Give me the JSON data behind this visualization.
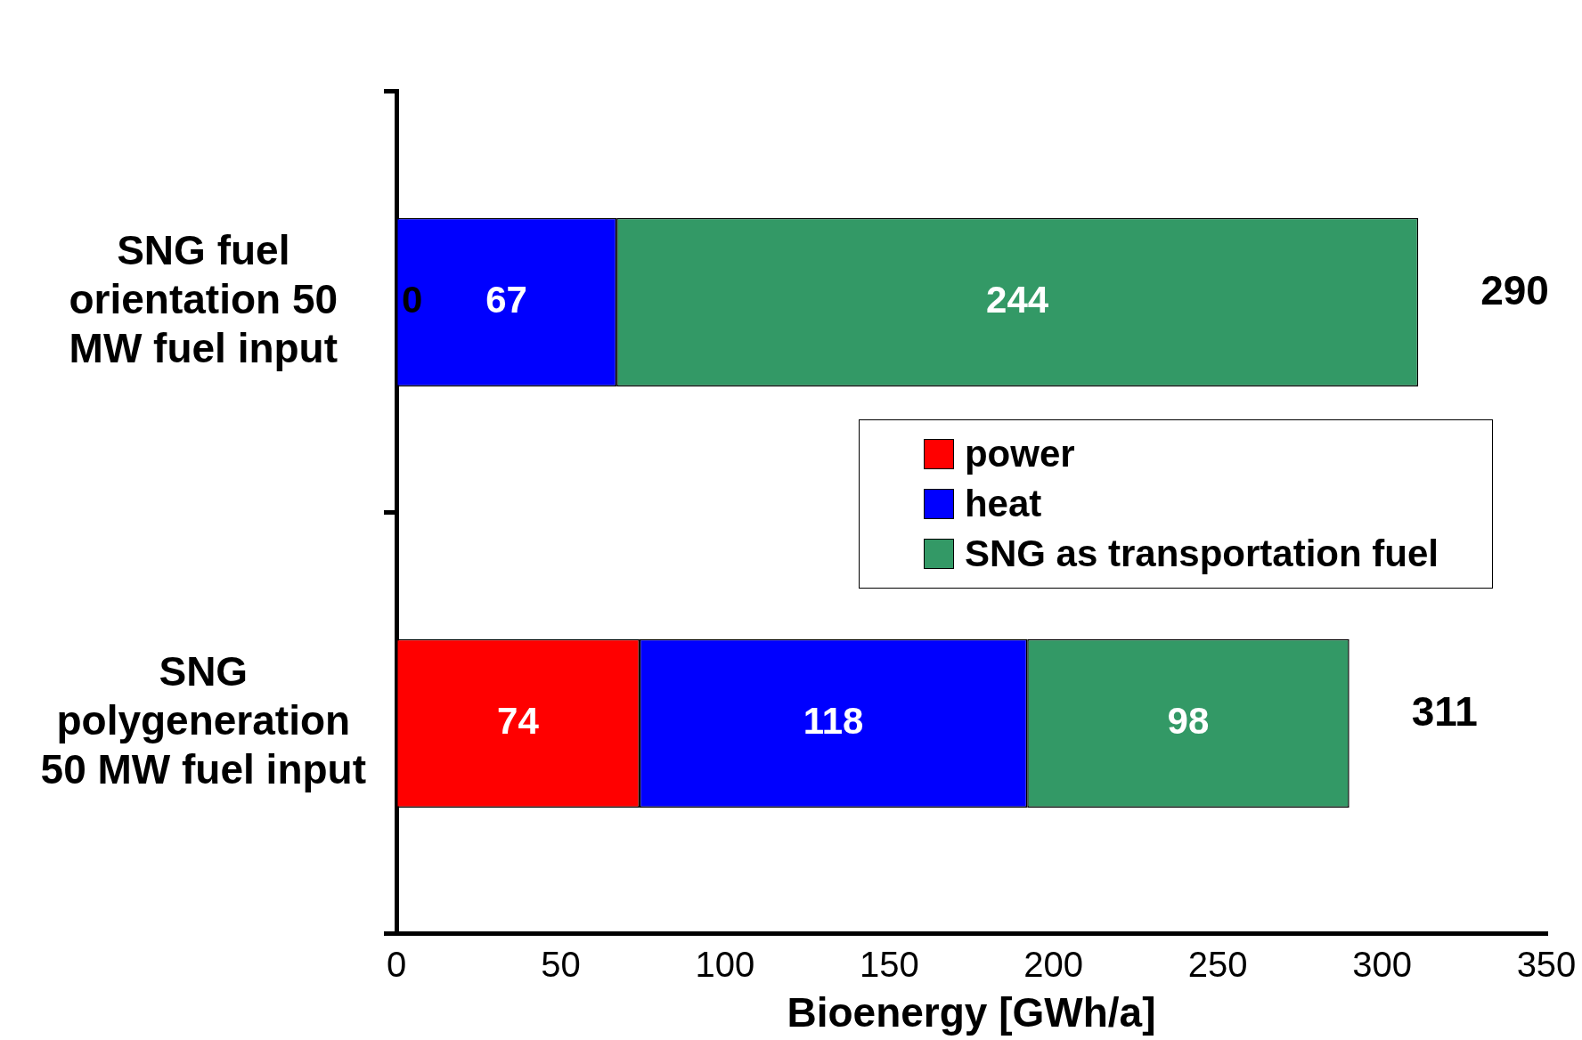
{
  "chart_data": {
    "type": "bar",
    "orientation": "horizontal",
    "stacked": true,
    "categories": [
      "SNG fuel orientation 50 MW fuel input",
      "SNG polygeneration 50 MW fuel input"
    ],
    "series": [
      {
        "name": "power",
        "color": "#ff0000",
        "values": [
          0,
          74
        ],
        "value_labels": [
          null,
          "74"
        ]
      },
      {
        "name": "heat",
        "color": "#0000ff",
        "values": [
          67,
          118
        ],
        "value_labels": [
          "67",
          "118"
        ]
      },
      {
        "name": "SNG as transportation fuel",
        "color": "#339966",
        "values": [
          244,
          98
        ],
        "value_labels": [
          "244",
          "98"
        ]
      }
    ],
    "xlabel": "Bioenergy [GWh/a]",
    "xlim": [
      0,
      350
    ],
    "xticks": [
      0,
      50,
      100,
      150,
      200,
      250,
      300,
      350
    ],
    "annotations": [
      {
        "text": "0",
        "x": 0,
        "y": "SNG fuel orientation 50 MW fuel input"
      },
      {
        "text": "290",
        "x": 311,
        "y": "SNG fuel orientation 50 MW fuel input"
      },
      {
        "text": "311",
        "x": 290,
        "y": "SNG polygeneration 50 MW fuel input"
      }
    ],
    "legend": "right",
    "grid": false
  }
}
